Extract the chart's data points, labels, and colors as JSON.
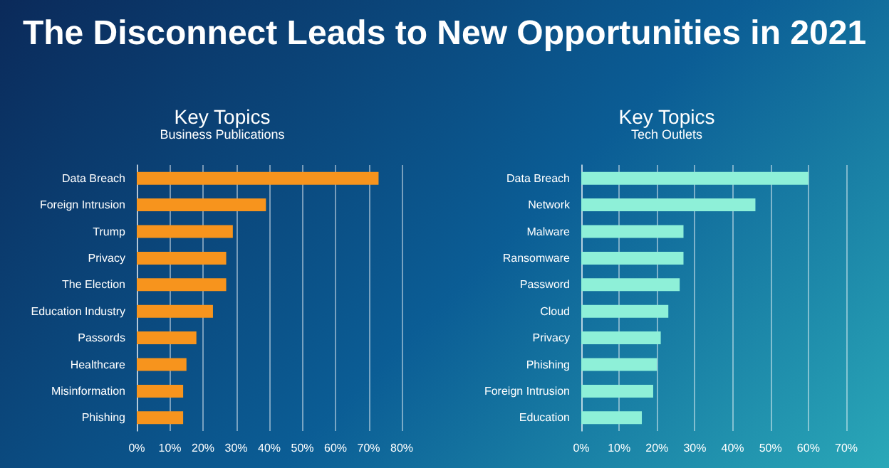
{
  "chart_data": [
    {
      "type": "bar",
      "orientation": "horizontal",
      "title": "Key Topics",
      "subtitle": "Business Publications",
      "annotations": [
        "The Disconnect Leads to New Opportunities in 2021"
      ],
      "categories": [
        "Data Breach",
        "Foreign Intrusion",
        "Trump",
        "Privacy",
        "The Election",
        "Education Industry",
        "Passords",
        "Healthcare",
        "Misinformation",
        "Phishing"
      ],
      "values": [
        73,
        39,
        29,
        27,
        27,
        23,
        18,
        15,
        14,
        14
      ],
      "color": "#f7941d",
      "xlim": [
        0,
        80
      ],
      "xticks": [
        {
          "value": 0,
          "label": "0%"
        },
        {
          "value": 10,
          "label": "10%"
        },
        {
          "value": 20,
          "label": "20%"
        },
        {
          "value": 30,
          "label": "30%"
        },
        {
          "value": 40,
          "label": "40%"
        },
        {
          "value": 50,
          "label": "50%"
        },
        {
          "value": 60,
          "label": "60%"
        },
        {
          "value": 70,
          "label": "70%"
        },
        {
          "value": 80,
          "label": "80%"
        }
      ],
      "grid": "x"
    },
    {
      "type": "bar",
      "orientation": "horizontal",
      "title": "Key Topics",
      "subtitle": "Tech Outlets",
      "categories": [
        "Data Breach",
        "Network",
        "Malware",
        "Ransomware",
        "Password",
        "Cloud",
        "Privacy",
        "Phishing",
        "Foreign Intrusion",
        "Education"
      ],
      "values": [
        60,
        46,
        27,
        27,
        26,
        23,
        21,
        20,
        19,
        16
      ],
      "color": "#8ef0d8",
      "xlim": [
        0,
        70
      ],
      "xticks": [
        {
          "value": 0,
          "label": "0%"
        },
        {
          "value": 10,
          "label": "10%"
        },
        {
          "value": 20,
          "label": "20%"
        },
        {
          "value": 30,
          "label": "30%"
        },
        {
          "value": 40,
          "label": "40%"
        },
        {
          "value": 50,
          "label": "50%"
        },
        {
          "value": 60,
          "label": "60%"
        },
        {
          "value": 70,
          "label": "70%"
        }
      ],
      "grid": "x"
    }
  ]
}
